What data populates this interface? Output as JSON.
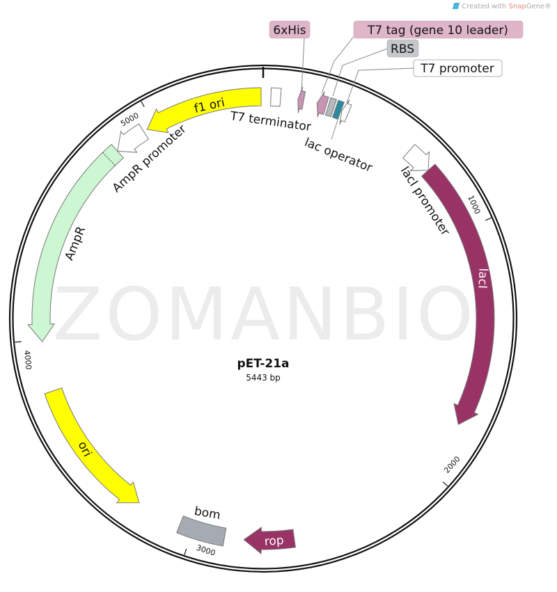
{
  "credit": {
    "prefix": "Created with ",
    "brand_snap": "Snap",
    "brand_gene": "Gene®",
    "icon": "snapgene-logo-icon"
  },
  "watermark": "ZOMANBIO",
  "plasmid": {
    "name": "pET-21a",
    "size_label": "5443 bp",
    "length": 5443
  },
  "ticks": [
    {
      "bp": 1000,
      "label": "1000"
    },
    {
      "bp": 2000,
      "label": "2000"
    },
    {
      "bp": 3000,
      "label": "3000"
    },
    {
      "bp": 4000,
      "label": "4000"
    },
    {
      "bp": 5000,
      "label": "5000"
    }
  ],
  "features": [
    {
      "name": "T7 terminator",
      "start": 30,
      "end": 68,
      "dir": 0,
      "color": "#ffffff"
    },
    {
      "name": "6xHis",
      "start": 136,
      "end": 159,
      "dir": -1,
      "color": "#c993b3"
    },
    {
      "name": "T7 tag (gene 10 leader)",
      "start": 212,
      "end": 249,
      "dir": -1,
      "color": "#c993b3"
    },
    {
      "name": "RBS",
      "start": 257,
      "end": 280,
      "dir": 0,
      "color": "#b5b9be"
    },
    {
      "name": "lac operator",
      "start": 287,
      "end": 310,
      "dir": 0,
      "color": "#2a8aa0"
    },
    {
      "name": "T7 promoter",
      "start": 313,
      "end": 340,
      "dir": -1,
      "color": "#ffffff"
    },
    {
      "name": "lacI promoter",
      "start": 620,
      "end": 726,
      "dir": 1,
      "color": "#ffffff"
    },
    {
      "name": "lacI",
      "start": 726,
      "end": 1792,
      "dir": 1,
      "color": "#993366"
    },
    {
      "name": "rop",
      "start": 2600,
      "end": 2797,
      "dir": 1,
      "color": "#993366"
    },
    {
      "name": "bom",
      "start": 2873,
      "end": 3054,
      "dir": 0,
      "color": "#a6abb3"
    },
    {
      "name": "ori",
      "start": 3235,
      "end": 3795,
      "dir": -1,
      "color": "#ffff00"
    },
    {
      "name": "AmpR",
      "start": 3992,
      "end": 4823,
      "dir": -1,
      "color": "#ccf7d2"
    },
    {
      "name": "AmpR promoter",
      "start": 4823,
      "end": 4951,
      "dir": -1,
      "color": "#ffffff"
    },
    {
      "name": "f1 ori",
      "start": 4967,
      "end": 5435,
      "dir": -1,
      "color": "#ffff00"
    }
  ],
  "labels": {
    "his": "6xHis",
    "t7tag": "T7 tag (gene 10 leader)",
    "rbs": "RBS",
    "t7promoter": "T7 promoter",
    "t7terminator": "T7 terminator",
    "lacoperator": "lac operator",
    "f1ori": "f1 ori",
    "amprpromoter": "AmpR promoter",
    "ampr": "AmpR",
    "lacipromoter": "lacI promoter",
    "laci": "lacI",
    "ori": "ori",
    "bom": "bom",
    "rop": "rop"
  },
  "colors": {
    "callout_pink": "#dfb5ca",
    "callout_gray": "#c4c7cb",
    "backbone": "#111111"
  }
}
